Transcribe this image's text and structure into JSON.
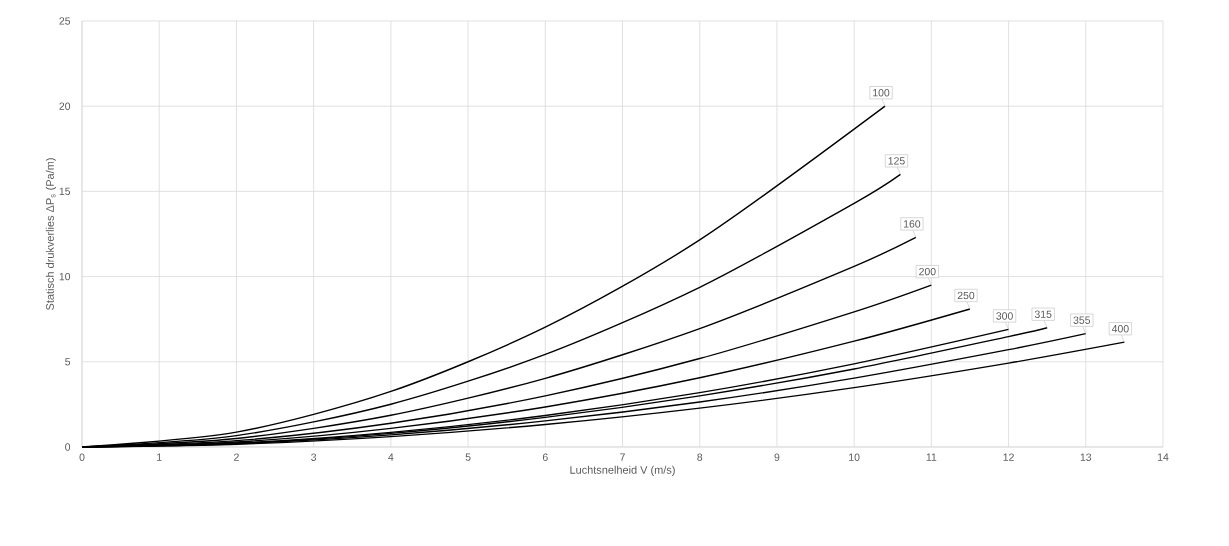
{
  "chart_data": {
    "type": "line",
    "xlabel": "Luchtsnelheid V (m/s)",
    "ylabel": "Statisch drukverlies ΔP$_{s}$ (Pa/m)",
    "xlim": [
      0,
      14
    ],
    "ylim": [
      0,
      25
    ],
    "xticks": [
      0,
      1,
      2,
      3,
      4,
      5,
      6,
      7,
      8,
      9,
      10,
      11,
      12,
      13,
      14
    ],
    "yticks": [
      0,
      5,
      10,
      15,
      20,
      25
    ],
    "grid": true,
    "marker": "none",
    "line_style": "solid",
    "series": [
      {
        "name": "100",
        "color": "#000000",
        "x": [
          0,
          2,
          4,
          6,
          8,
          10.4
        ],
        "values": [
          0,
          0.87,
          3.26,
          7.03,
          12.15,
          20
        ]
      },
      {
        "name": "125",
        "color": "#000000",
        "x": [
          0,
          2,
          4,
          6,
          8,
          10,
          10.6
        ],
        "values": [
          0,
          0.67,
          2.51,
          5.43,
          9.37,
          14.3,
          16
        ]
      },
      {
        "name": "160",
        "color": "#000000",
        "x": [
          0,
          2,
          4,
          6,
          8,
          10,
          10.8
        ],
        "values": [
          0,
          0.5,
          1.86,
          4.03,
          6.95,
          10.6,
          12.3
        ]
      },
      {
        "name": "200",
        "color": "#000000",
        "x": [
          0,
          2,
          4,
          6,
          8,
          10,
          11
        ],
        "values": [
          0,
          0.37,
          1.39,
          3.0,
          5.19,
          7.93,
          9.5
        ]
      },
      {
        "name": "250",
        "color": "#000000",
        "x": [
          0,
          2,
          4,
          6,
          8,
          10,
          11.5
        ],
        "values": [
          0,
          0.29,
          1.09,
          2.35,
          4.06,
          6.21,
          8.1
        ]
      },
      {
        "name": "300",
        "color": "#000000",
        "x": [
          0,
          2,
          4,
          6,
          8,
          10,
          12
        ],
        "values": [
          0,
          0.23,
          0.86,
          1.85,
          3.19,
          4.88,
          6.9
        ]
      },
      {
        "name": "315",
        "color": "#000000",
        "x": [
          0,
          2,
          4,
          6,
          8,
          10,
          12,
          12.5
        ],
        "values": [
          0,
          0.21,
          0.8,
          1.74,
          3.0,
          4.58,
          6.48,
          7.0
        ]
      },
      {
        "name": "355",
        "color": "#000000",
        "x": [
          0,
          2,
          4,
          6,
          8,
          10,
          12,
          13
        ],
        "values": [
          0,
          0.19,
          0.71,
          1.53,
          2.64,
          4.04,
          5.71,
          6.65
        ]
      },
      {
        "name": "400",
        "color": "#000000",
        "x": [
          0,
          2,
          4,
          6,
          8,
          10,
          12,
          13.5
        ],
        "values": [
          0,
          0.16,
          0.61,
          1.32,
          2.28,
          3.48,
          4.92,
          6.15
        ]
      }
    ]
  }
}
